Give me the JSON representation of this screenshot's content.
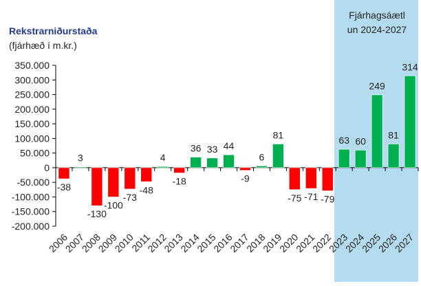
{
  "chart_data": {
    "type": "bar",
    "title": "Rekstrarniðurstaða",
    "subtitle": "(fjárhæð í m.kr.)",
    "highlight_label_line1": "Fjárhagsáætl",
    "highlight_label_line2": "un 2024-2027",
    "highlight_range": [
      "2023",
      "2027"
    ],
    "categories": [
      "2006",
      "2007",
      "2008",
      "2009",
      "2010",
      "2011",
      "2012",
      "2013",
      "2014",
      "2015",
      "2016",
      "2017",
      "2018",
      "2019",
      "2020",
      "2021",
      "2022",
      "2023",
      "2024",
      "2025",
      "2026",
      "2027"
    ],
    "values": [
      -38,
      3,
      -130,
      -100,
      -73,
      -48,
      4,
      -18,
      36,
      33,
      44,
      -9,
      6,
      81,
      -75,
      -71,
      -79,
      63,
      60,
      249,
      81,
      314
    ],
    "value_unit_multiplier_to_axis": 1000,
    "ylim": [
      -200000,
      350000
    ],
    "yticks": [
      350000,
      300000,
      250000,
      200000,
      150000,
      100000,
      50000,
      0,
      -50000,
      -100000,
      -150000,
      -200000
    ],
    "ytick_labels": [
      "350.000",
      "300.000",
      "250.000",
      "200.000",
      "150.000",
      "100.000",
      "50.000",
      "0",
      "-50.000",
      "-100.000",
      "-150.000",
      "-200.000"
    ],
    "colors": {
      "positive": "#00b050",
      "negative": "#ff0000",
      "highlight_bg": "#b4dcf0",
      "title": "#1f3c8c"
    }
  }
}
